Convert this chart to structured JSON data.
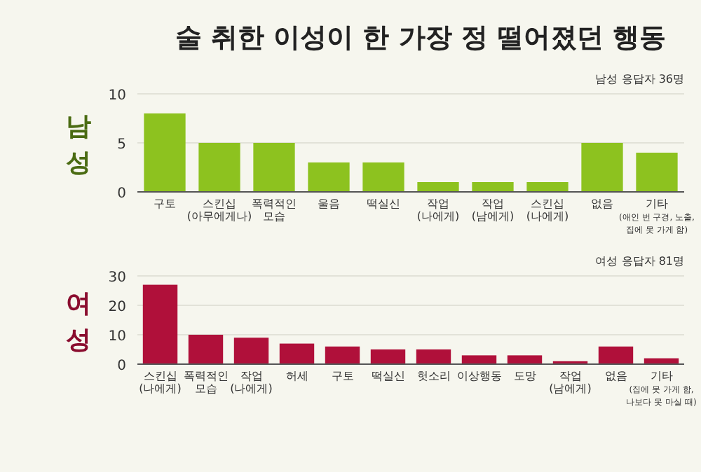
{
  "chart_data": [
    {
      "type": "bar",
      "title": "술 취한 이성이 한 가장 정 떨어졌던 행동",
      "ylabel": "남성",
      "annotations": [
        "남성 응답자 36명"
      ],
      "categories": [
        "구토",
        "스킨십\n(아무에게나)",
        "폭력적인\n모습",
        "울음",
        "떡실신",
        "작업\n(나에게)",
        "작업\n(남에게)",
        "스킨십\n(나에게)",
        "없음",
        "기타\n(애인 번 구경, 노출,\n집에 못 가게 함)"
      ],
      "values": [
        8,
        5,
        5,
        3,
        3,
        1,
        1,
        1,
        5,
        4
      ],
      "color": "#8dc21f",
      "ylim": [
        0,
        10
      ],
      "yticks": [
        0,
        5,
        10
      ],
      "grid": "y"
    },
    {
      "type": "bar",
      "ylabel": "여성",
      "annotations": [
        "여성 응답자 81명"
      ],
      "categories": [
        "스킨십\n(나에게)",
        "폭력적인\n모습",
        "작업\n(나에게)",
        "허세",
        "구토",
        "떡실신",
        "헛소리",
        "이상행동",
        "도망",
        "작업\n(남에게)",
        "없음",
        "기타\n(집에 못 가게 함,\n나보다 못 마실 때)"
      ],
      "values": [
        27,
        10,
        9,
        7,
        6,
        5,
        5,
        3,
        3,
        1,
        6,
        2
      ],
      "color": "#b0103a",
      "ylim": [
        0,
        30
      ],
      "yticks": [
        0,
        10,
        20,
        30
      ],
      "grid": "y"
    }
  ]
}
